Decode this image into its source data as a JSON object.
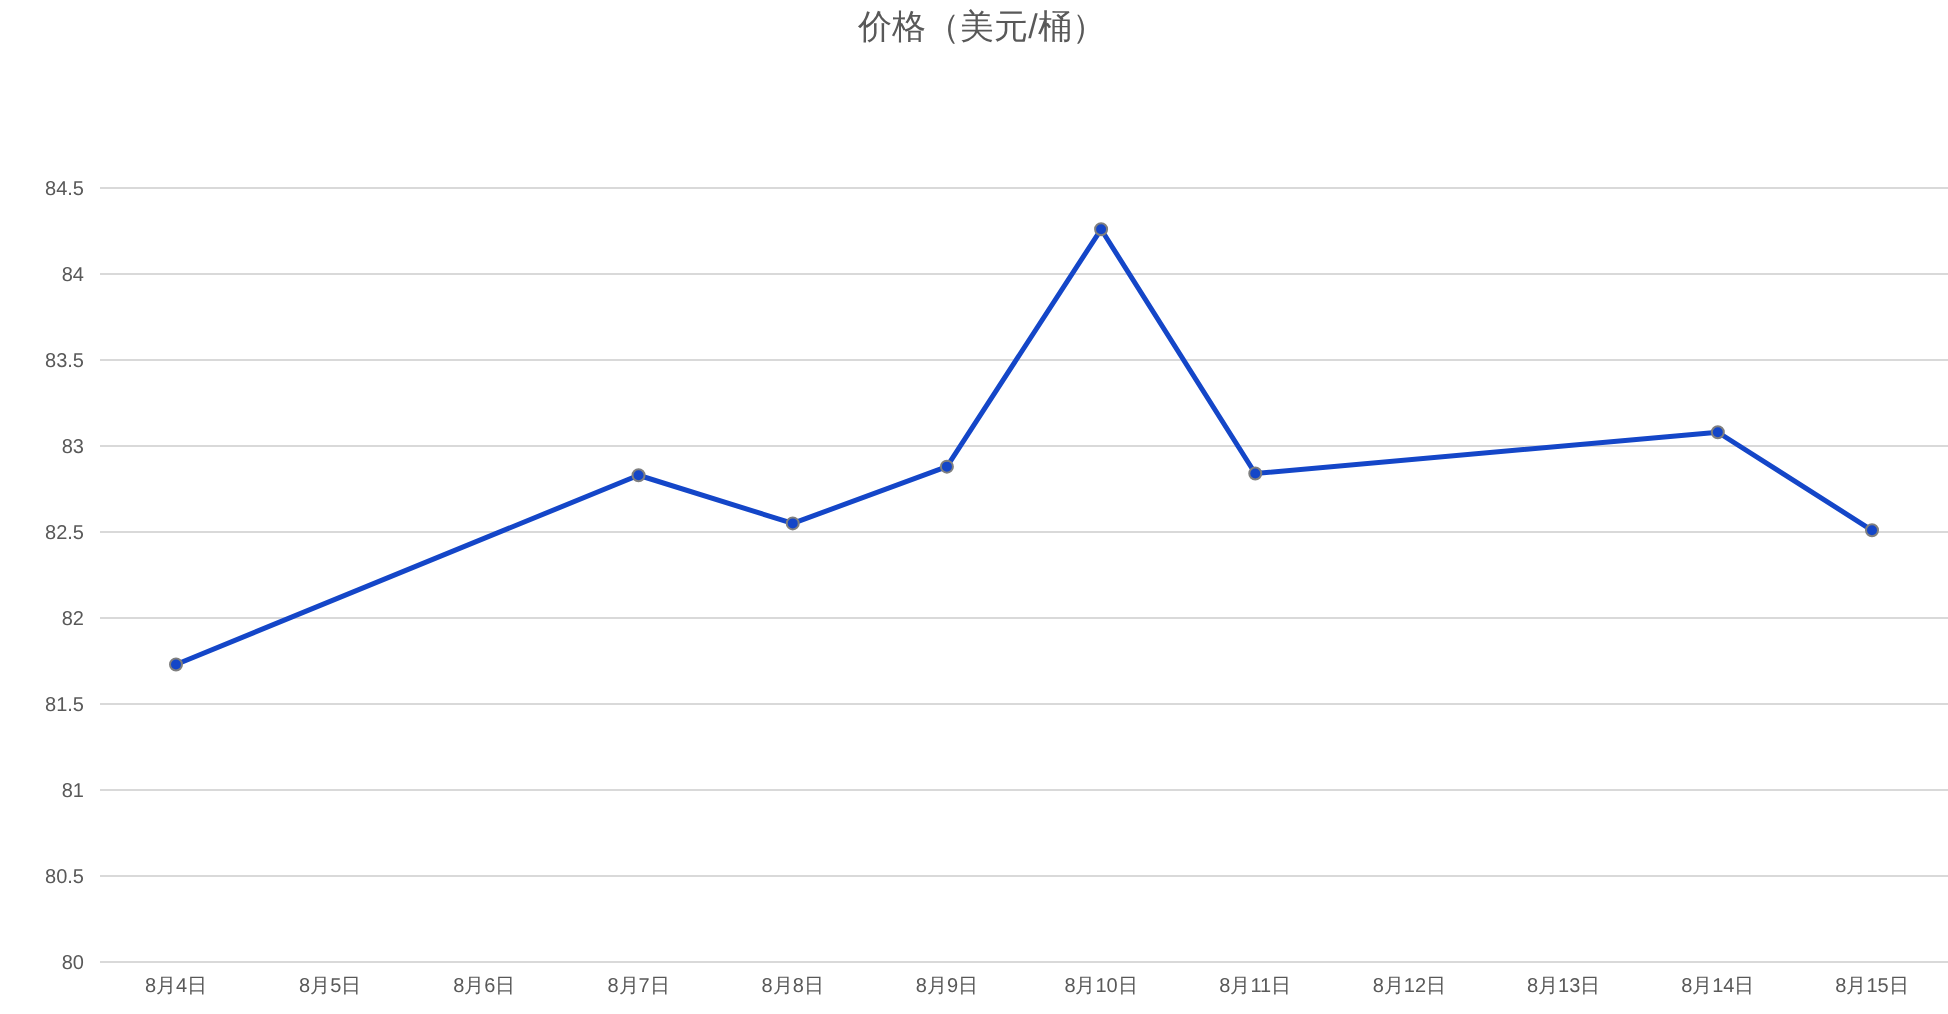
{
  "chart_data": {
    "type": "line",
    "title": "价格（美元/桶）",
    "categories": [
      "8月4日",
      "8月5日",
      "8月6日",
      "8月7日",
      "8月8日",
      "8月9日",
      "8月10日",
      "8月11日",
      "8月12日",
      "8月13日",
      "8月14日",
      "8月15日"
    ],
    "series": [
      {
        "color": "#1446c8",
        "values": [
          81.73,
          null,
          null,
          82.83,
          82.55,
          82.88,
          84.26,
          82.84,
          null,
          null,
          83.08,
          82.51
        ]
      }
    ],
    "ylim": [
      80,
      84.5
    ],
    "yticks": [
      80,
      80.5,
      81,
      81.5,
      82,
      82.5,
      83,
      83.5,
      84,
      84.5
    ],
    "grid": "y",
    "legend": false,
    "marker": "circle",
    "line_style": "solid"
  }
}
